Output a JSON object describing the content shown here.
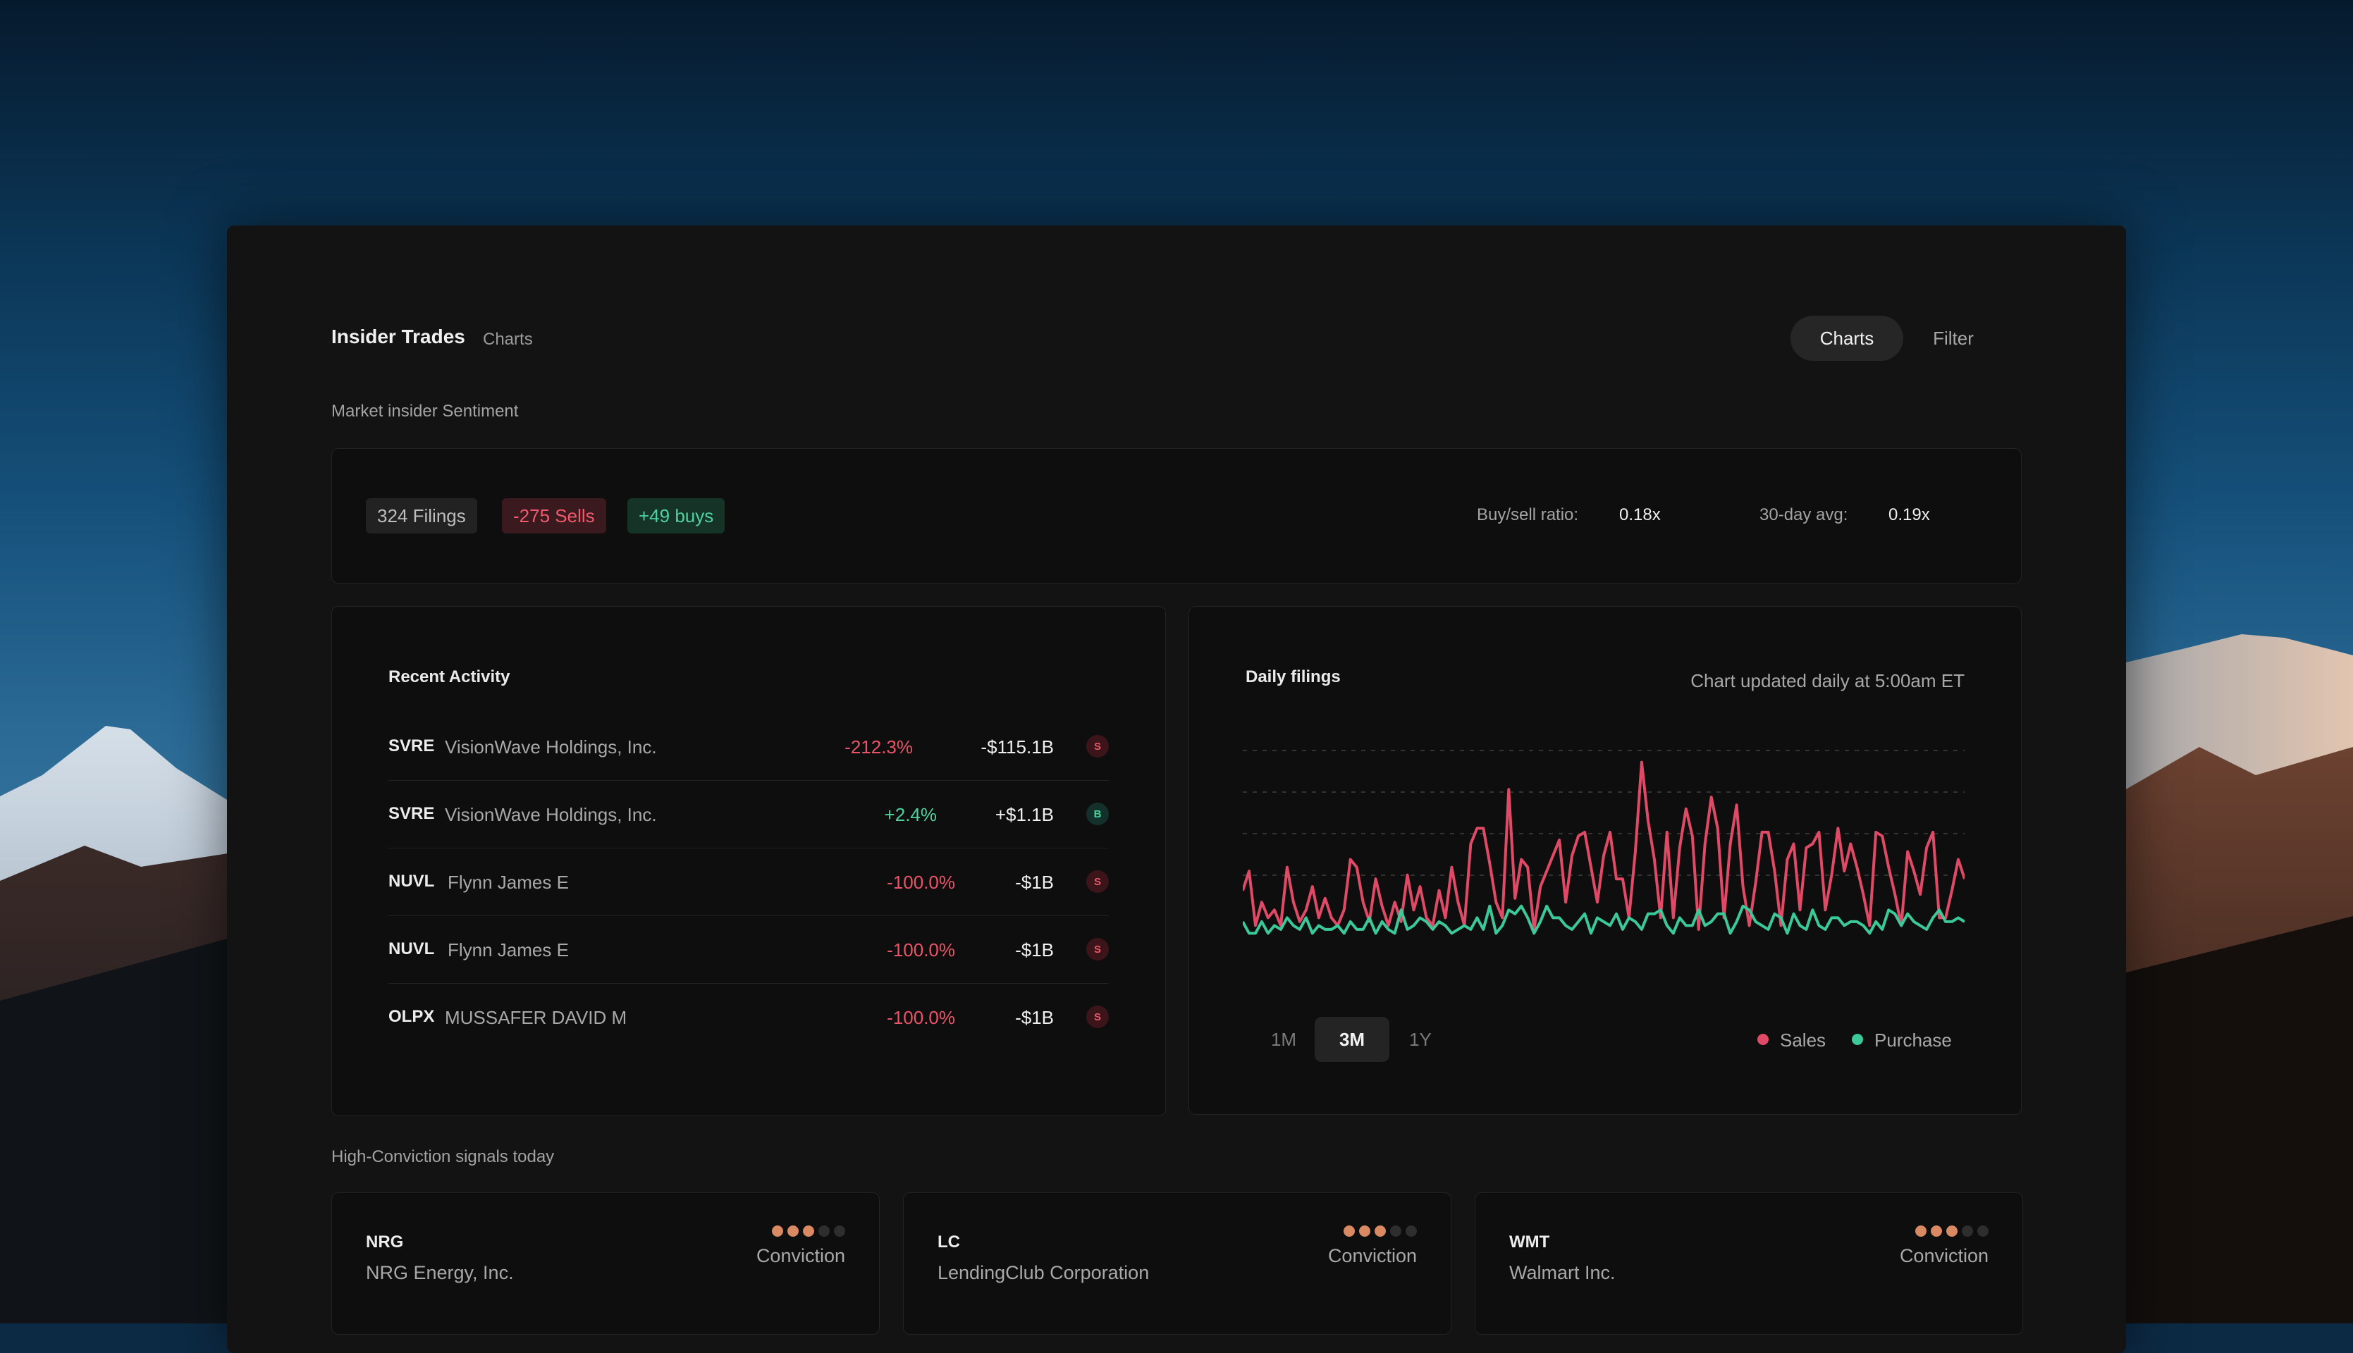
{
  "header": {
    "title": "Insider Trades",
    "subtitle": "Charts",
    "tabs": [
      {
        "label": "Charts"
      },
      {
        "label": "Filter"
      }
    ]
  },
  "sentiment": {
    "section_label": "Market insider Sentiment",
    "filings": "324 Filings",
    "sells": "-275 Sells",
    "buys": "+49 buys",
    "buy_sell_label": "Buy/sell ratio:",
    "buy_sell_value": "0.18x",
    "avg_label": "30-day avg:",
    "avg_value": "0.19x"
  },
  "recent": {
    "title": "Recent Activity",
    "rows": [
      {
        "ticker": "SVRE",
        "company": "VisionWave Holdings, Inc.",
        "pct": "-212.3%",
        "amount": "-$115.1B",
        "badge": "S"
      },
      {
        "ticker": "SVRE",
        "company": "VisionWave Holdings, Inc.",
        "pct": "+2.4%",
        "amount": "+$1.1B",
        "badge": "B"
      },
      {
        "ticker": "NUVL",
        "company": "Flynn James E",
        "pct": "-100.0%",
        "amount": "-$1B",
        "badge": "S"
      },
      {
        "ticker": "NUVL",
        "company": "Flynn James E",
        "pct": "-100.0%",
        "amount": "-$1B",
        "badge": "S"
      },
      {
        "ticker": "OLPX",
        "company": "MUSSAFER DAVID M",
        "pct": "-100.0%",
        "amount": "-$1B",
        "badge": "S"
      }
    ]
  },
  "daily": {
    "title": "Daily filings",
    "updated": "Chart updated daily at 5:00am ET",
    "ranges": [
      "1M",
      "3M",
      "1Y"
    ],
    "active_range": "3M",
    "legend": [
      {
        "label": "Sales"
      },
      {
        "label": "Purchase"
      }
    ]
  },
  "chart_data": {
    "type": "line",
    "title": "Daily filings",
    "xlabel": "",
    "ylabel": "",
    "ylim": [
      0,
      100
    ],
    "grid": true,
    "legend_position": "bottom-right",
    "series": [
      {
        "name": "Sales",
        "color": "#e04a66",
        "values": [
          28,
          38,
          10,
          22,
          14,
          18,
          10,
          40,
          22,
          12,
          18,
          30,
          14,
          24,
          14,
          10,
          18,
          44,
          40,
          22,
          12,
          34,
          20,
          10,
          22,
          12,
          36,
          18,
          30,
          14,
          10,
          28,
          14,
          40,
          22,
          10,
          52,
          60,
          60,
          42,
          22,
          14,
          80,
          24,
          44,
          40,
          8,
          30,
          38,
          46,
          54,
          22,
          46,
          56,
          58,
          40,
          22,
          46,
          58,
          34,
          34,
          14,
          48,
          94,
          64,
          44,
          14,
          58,
          14,
          50,
          70,
          56,
          8,
          52,
          76,
          60,
          14,
          52,
          72,
          30,
          10,
          32,
          58,
          58,
          38,
          10,
          44,
          52,
          18,
          50,
          52,
          58,
          18,
          36,
          60,
          38,
          52,
          40,
          26,
          10,
          58,
          56,
          40,
          26,
          10,
          48,
          38,
          26,
          50,
          58,
          14,
          14,
          28,
          44,
          34
        ],
        "comment": "relative daily counts read off chart (no y-axis printed)"
      },
      {
        "name": "Purchase",
        "color": "#3cc99a",
        "values": [
          12,
          6,
          6,
          12,
          6,
          10,
          8,
          14,
          10,
          8,
          14,
          6,
          10,
          8,
          8,
          10,
          6,
          12,
          8,
          8,
          14,
          6,
          12,
          8,
          6,
          18,
          8,
          10,
          14,
          12,
          8,
          12,
          10,
          6,
          8,
          10,
          8,
          14,
          8,
          20,
          6,
          10,
          18,
          16,
          20,
          14,
          6,
          12,
          20,
          14,
          14,
          10,
          8,
          12,
          16,
          6,
          14,
          12,
          10,
          16,
          8,
          14,
          12,
          8,
          16,
          16,
          18,
          10,
          6,
          14,
          10,
          10,
          18,
          10,
          12,
          16,
          16,
          6,
          12,
          20,
          18,
          12,
          10,
          8,
          16,
          14,
          6,
          16,
          10,
          8,
          18,
          10,
          8,
          14,
          14,
          10,
          12,
          12,
          10,
          6,
          12,
          8,
          18,
          16,
          10,
          16,
          12,
          10,
          8,
          14,
          18,
          12,
          12,
          14,
          12
        ]
      }
    ]
  },
  "signals": {
    "section_label": "High-Conviction signals today",
    "items": [
      {
        "ticker": "NRG",
        "name": "NRG Energy, Inc.",
        "conviction_label": "Conviction",
        "conviction_level": 3,
        "conviction_max": 5
      },
      {
        "ticker": "LC",
        "name": "LendingClub Corporation",
        "conviction_label": "Conviction",
        "conviction_level": 3,
        "conviction_max": 5
      },
      {
        "ticker": "WMT",
        "name": "Walmart Inc.",
        "conviction_label": "Conviction",
        "conviction_level": 3,
        "conviction_max": 5
      }
    ]
  },
  "colors": {
    "sells": "#ec5368",
    "buys": "#4ed3a0",
    "conviction_on": "#d98a62",
    "conviction_off": "#2e2e2e"
  }
}
